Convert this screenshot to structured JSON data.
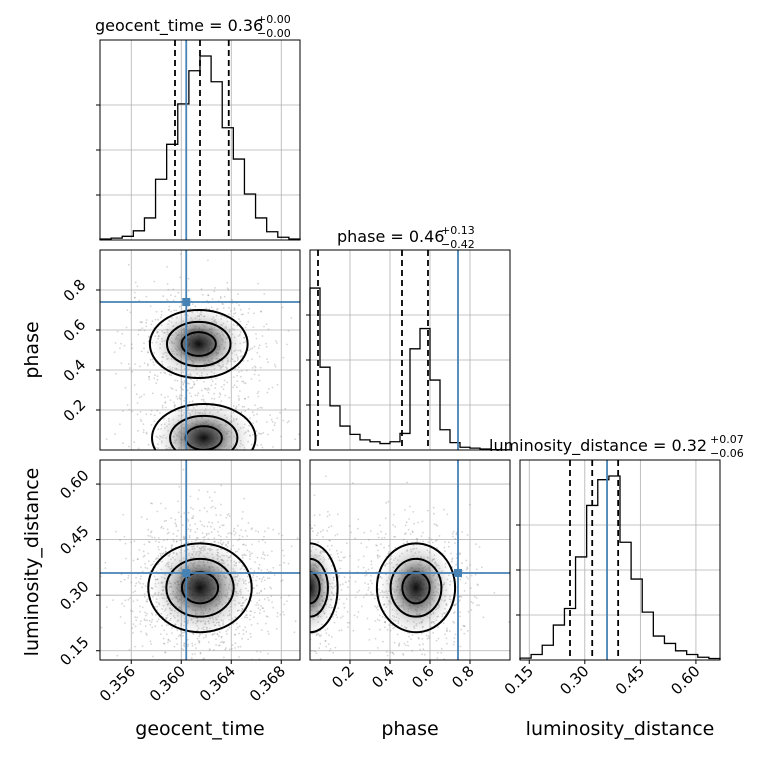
{
  "chart_data": {
    "type": "corner",
    "parameters": [
      {
        "name": "geocent_time",
        "median": 0.3615,
        "lo": 0.3595,
        "hi": 0.3638,
        "truth": 0.3604,
        "title": "geocent_time = 0.36",
        "title_sup": "+0.00",
        "title_sub": "−0.00",
        "range": [
          0.3535,
          0.3695
        ],
        "ticks": [
          0.356,
          0.36,
          0.364,
          0.368
        ],
        "tick_labels": [
          "0.356",
          "0.360",
          "0.364",
          "0.368"
        ],
        "axis_label": "geocent_time",
        "hist": [
          0.005,
          0.01,
          0.02,
          0.05,
          0.12,
          0.33,
          0.52,
          0.74,
          0.92,
          1.0,
          0.86,
          0.61,
          0.44,
          0.25,
          0.12,
          0.045,
          0.015,
          0.005
        ]
      },
      {
        "name": "phase",
        "median": 0.46,
        "lo": 0.04,
        "hi": 0.59,
        "truth": 0.74,
        "title": "phase = 0.46",
        "title_sup": "+0.13",
        "title_sub": "−0.42",
        "range": [
          0.0,
          1.0
        ],
        "ticks": [
          0.2,
          0.4,
          0.6,
          0.8
        ],
        "tick_labels": [
          "0.2",
          "0.4",
          "0.6",
          "0.8"
        ],
        "axis_label": "phase",
        "hist": [
          0.88,
          0.45,
          0.24,
          0.13,
          0.085,
          0.055,
          0.045,
          0.035,
          0.045,
          0.09,
          0.55,
          0.66,
          0.38,
          0.11,
          0.04,
          0.015,
          0.01,
          0.005,
          0.002,
          0.001
        ]
      },
      {
        "name": "luminosity_distance",
        "median": 0.32,
        "lo": 0.26,
        "hi": 0.39,
        "truth": 0.36,
        "title": "luminosity_distance = 0.32",
        "title_sup": "+0.07",
        "title_sub": "−0.06",
        "range": [
          0.125,
          0.665
        ],
        "ticks": [
          0.15,
          0.3,
          0.45,
          0.6
        ],
        "tick_labels": [
          "0.15",
          "0.30",
          "0.45",
          "0.60"
        ],
        "axis_label": "luminosity_distance",
        "hist": [
          0.01,
          0.03,
          0.08,
          0.19,
          0.28,
          0.56,
          0.84,
          0.98,
          1.0,
          0.64,
          0.44,
          0.26,
          0.13,
          0.09,
          0.05,
          0.03,
          0.015,
          0.008
        ]
      }
    ],
    "truth_color": "#4682b4",
    "grid": true
  }
}
